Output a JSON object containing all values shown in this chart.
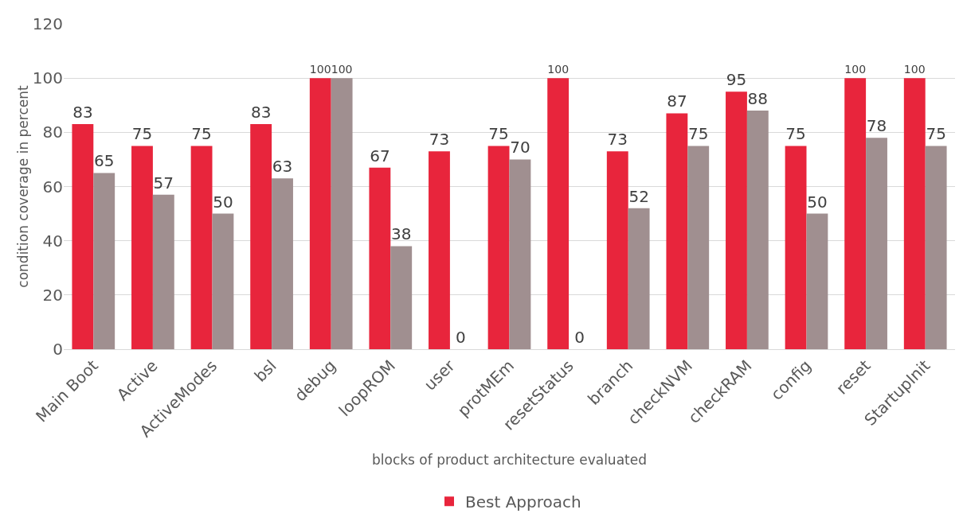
{
  "chart_data": {
    "type": "bar",
    "xlabel": "blocks of product architecture evaluated",
    "ylabel": "condition coverage in percent",
    "categories": [
      "Main Boot",
      "Active",
      "ActiveModes",
      "bsl",
      "debug",
      "loopROM",
      "user",
      "protMEm",
      "resetStatus",
      "branch",
      "checkNVM",
      "checkRAM",
      "config",
      "reset",
      "StartupInit"
    ],
    "series": [
      {
        "name": "Best Approach",
        "color": "#e8253c",
        "values": [
          83,
          75,
          75,
          83,
          100,
          67,
          73,
          75,
          100,
          73,
          87,
          95,
          75,
          100,
          100
        ]
      },
      {
        "color": "#a08f90",
        "values": [
          65,
          57,
          50,
          63,
          100,
          38,
          0,
          70,
          0,
          52,
          75,
          88,
          50,
          78,
          75
        ]
      }
    ],
    "ylim": [
      0,
      120
    ],
    "yticks": [
      0,
      20,
      40,
      60,
      80,
      100,
      120
    ],
    "grid": "y",
    "legend": "bottom",
    "data_labels": true
  }
}
